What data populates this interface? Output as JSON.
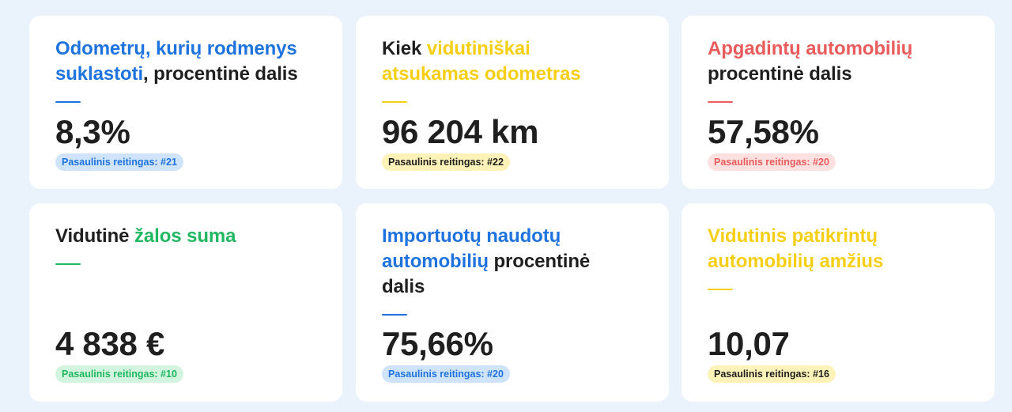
{
  "cards": [
    {
      "title_parts": [
        "Odometrų, kurių rodmenys suklastoti",
        ", procentinė dalis"
      ],
      "value": "8,3%",
      "rank": "Pasaulinis reitingas: #21",
      "accent": "#1e73de"
    },
    {
      "title_parts": [
        "Kiek ",
        "vidutiniškai atsukamas odometras"
      ],
      "value": "96 204 km",
      "rank": "Pasaulinis reitingas: #22",
      "accent": "#f6cf14"
    },
    {
      "title_parts": [
        "Apgadintų automobilių",
        " procentinė dalis"
      ],
      "value": "57,58%",
      "rank": "Pasaulinis reitingas: #20",
      "accent": "#ea5b5b"
    },
    {
      "title_parts": [
        "Vidutinė ",
        "žalos suma"
      ],
      "value": "4 838 €",
      "rank": "Pasaulinis reitingas: #10",
      "accent": "#1fb860"
    },
    {
      "title_parts": [
        "Importuotų naudotų automobilių",
        " procentinė dalis"
      ],
      "value": "75,66%",
      "rank": "Pasaulinis reitingas: #20",
      "accent": "#1e73de"
    },
    {
      "title_parts": [
        "Vidutinis patikrintų automobilių amžius"
      ],
      "value": "10,07",
      "rank": "Pasaulinis reitingas: #16",
      "accent": "#f6cf14"
    }
  ]
}
